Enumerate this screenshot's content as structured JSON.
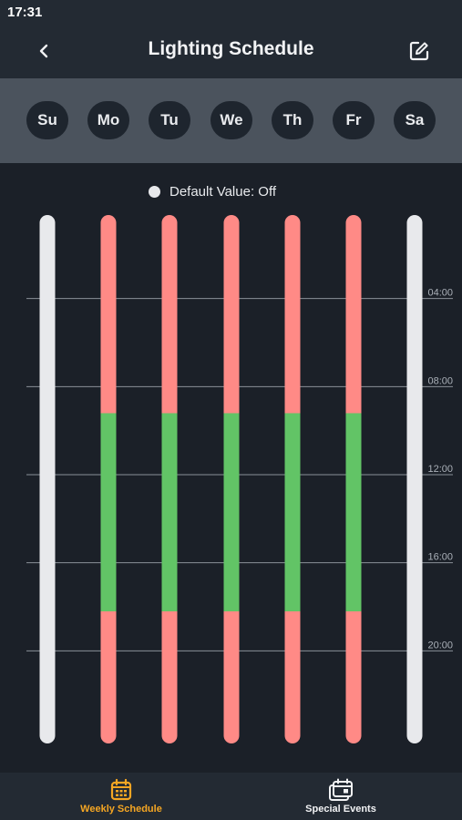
{
  "status_bar": {
    "time": "17:31"
  },
  "header": {
    "title": "Lighting Schedule",
    "back_icon": "chevron-left-icon",
    "edit_icon": "edit-icon"
  },
  "days": [
    "Su",
    "Mo",
    "Tu",
    "We",
    "Th",
    "Fr",
    "Sa"
  ],
  "legend": {
    "label": "Default Value: Off"
  },
  "colors": {
    "off": "#ff8a86",
    "on": "#62c466",
    "default": "#e8e9ec",
    "accent": "#f5a623",
    "background": "#1b2028"
  },
  "chart_data": {
    "type": "bar",
    "orientation": "vertical-timeline",
    "categories": [
      "Su",
      "Mo",
      "Tu",
      "We",
      "Th",
      "Fr",
      "Sa"
    ],
    "y_range_hours": [
      0,
      24
    ],
    "y_ticks": [
      "04:00",
      "08:00",
      "12:00",
      "16:00",
      "20:00"
    ],
    "grid": true,
    "series": [
      {
        "day": "Su",
        "segments": [
          {
            "start": 0,
            "end": 24,
            "state": "default"
          }
        ]
      },
      {
        "day": "Mo",
        "segments": [
          {
            "start": 0,
            "end": 9,
            "state": "off"
          },
          {
            "start": 9,
            "end": 18,
            "state": "on"
          },
          {
            "start": 18,
            "end": 24,
            "state": "off"
          }
        ]
      },
      {
        "day": "Tu",
        "segments": [
          {
            "start": 0,
            "end": 9,
            "state": "off"
          },
          {
            "start": 9,
            "end": 18,
            "state": "on"
          },
          {
            "start": 18,
            "end": 24,
            "state": "off"
          }
        ]
      },
      {
        "day": "We",
        "segments": [
          {
            "start": 0,
            "end": 9,
            "state": "off"
          },
          {
            "start": 9,
            "end": 18,
            "state": "on"
          },
          {
            "start": 18,
            "end": 24,
            "state": "off"
          }
        ]
      },
      {
        "day": "Th",
        "segments": [
          {
            "start": 0,
            "end": 9,
            "state": "off"
          },
          {
            "start": 9,
            "end": 18,
            "state": "on"
          },
          {
            "start": 18,
            "end": 24,
            "state": "off"
          }
        ]
      },
      {
        "day": "Fr",
        "segments": [
          {
            "start": 0,
            "end": 9,
            "state": "off"
          },
          {
            "start": 9,
            "end": 18,
            "state": "on"
          },
          {
            "start": 18,
            "end": 24,
            "state": "off"
          }
        ]
      },
      {
        "day": "Sa",
        "segments": [
          {
            "start": 0,
            "end": 24,
            "state": "default"
          }
        ]
      }
    ]
  },
  "bottom_nav": {
    "items": [
      {
        "label": "Weekly Schedule",
        "icon": "calendar-icon",
        "active": true
      },
      {
        "label": "Special Events",
        "icon": "calendar-event-icon",
        "active": false
      }
    ]
  }
}
